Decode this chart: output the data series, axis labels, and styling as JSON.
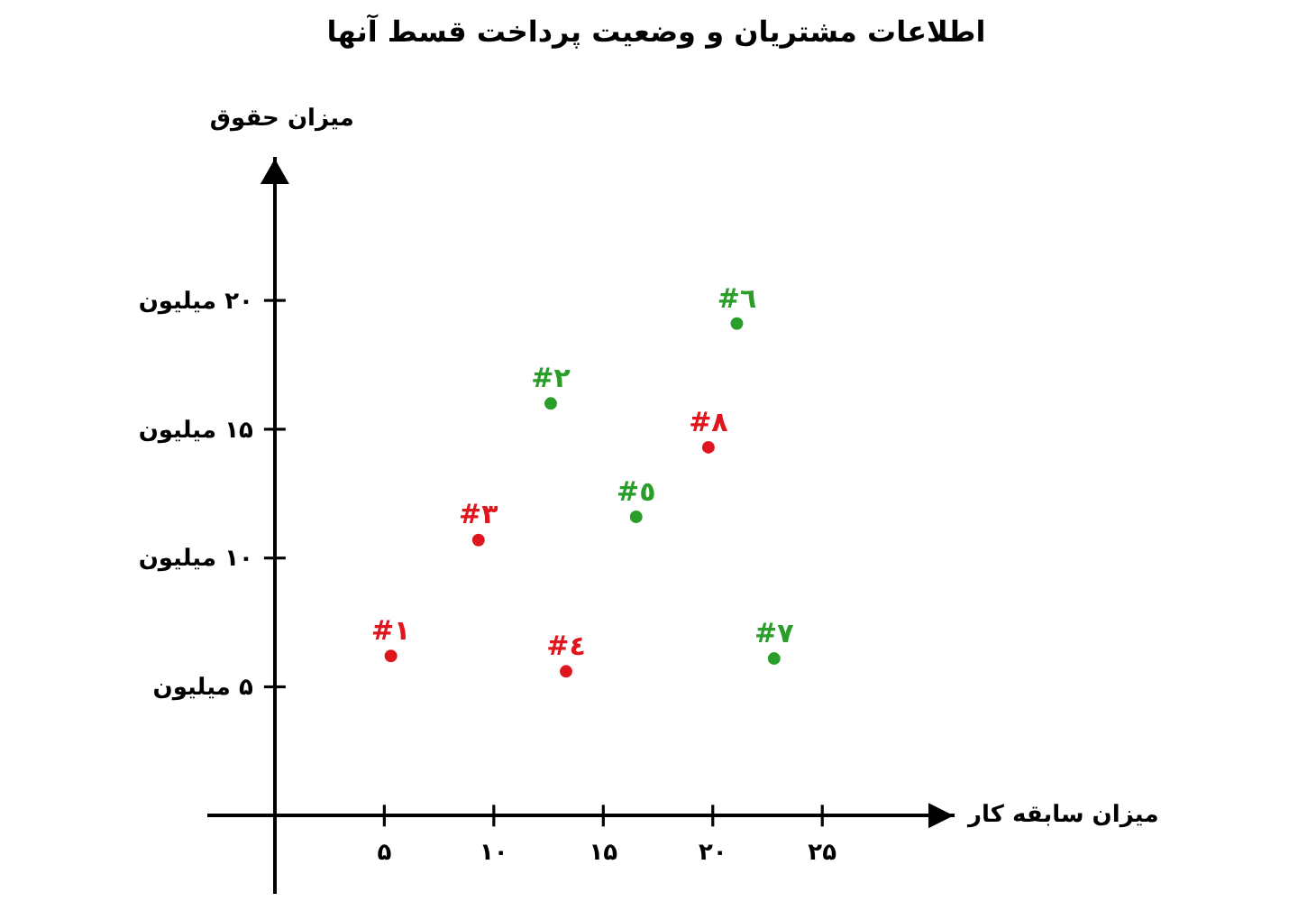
{
  "chart_data": {
    "type": "scatter",
    "title": "اطلاعات مشتریان و وضعیت پرداخت قسط آنها",
    "xlabel": "میزان سابقه کار",
    "ylabel": "میزان حقوق",
    "series": [
      {
        "name": "#١",
        "color": "#e0161e",
        "x": [
          5.3
        ],
        "values": [
          6.2
        ]
      },
      {
        "name": "#٢",
        "color": "#2a9d2a",
        "x": [
          12.6
        ],
        "values": [
          16
        ]
      },
      {
        "name": "#٣",
        "color": "#e0161e",
        "x": [
          9.3
        ],
        "values": [
          10.7
        ]
      },
      {
        "name": "#٤",
        "color": "#e0161e",
        "x": [
          13.3
        ],
        "values": [
          5.6
        ]
      },
      {
        "name": "#٥",
        "color": "#2a9d2a",
        "x": [
          16.5
        ],
        "values": [
          11.6
        ]
      },
      {
        "name": "#٦",
        "color": "#2a9d2a",
        "x": [
          21.1
        ],
        "values": [
          19.1
        ]
      },
      {
        "name": "#٧",
        "color": "#2a9d2a",
        "x": [
          22.8
        ],
        "values": [
          6.1
        ]
      },
      {
        "name": "#٨",
        "color": "#e0161e",
        "x": [
          19.8
        ],
        "values": [
          14.3
        ]
      }
    ],
    "marker": "circle",
    "xlim": [
      -3,
      31
    ],
    "xticks": [
      {
        "value": 5,
        "label": "۵"
      },
      {
        "value": 10,
        "label": "۱۰"
      },
      {
        "value": 15,
        "label": "۱۵"
      },
      {
        "value": 20,
        "label": "۲۰"
      },
      {
        "value": 25,
        "label": "۲۵"
      }
    ],
    "ylim": [
      -3,
      25.5
    ],
    "yticks": [
      {
        "value": 5,
        "label": "۵ میلیون"
      },
      {
        "value": 10,
        "label": "۱۰ میلیون"
      },
      {
        "value": 15,
        "label": "۱۵ میلیون"
      },
      {
        "value": 20,
        "label": "۲۰ میلیون"
      }
    ]
  }
}
